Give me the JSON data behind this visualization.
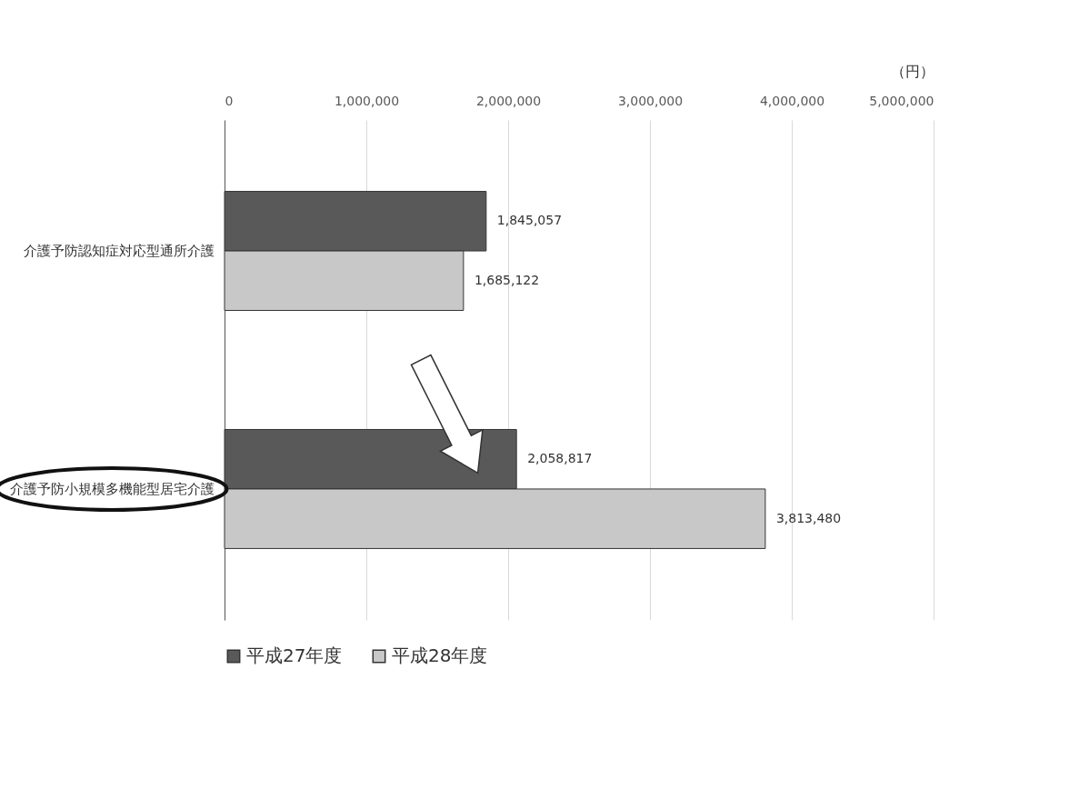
{
  "chart_data": {
    "type": "bar",
    "orientation": "horizontal",
    "xlabel": "（円）",
    "categories": [
      "介護予防認知症対応型通所介護",
      "介護予防小規模多機能型居宅介護"
    ],
    "series": [
      {
        "name": "平成27年度",
        "color": "#595959",
        "values": [
          1845057,
          2058817
        ],
        "value_labels": [
          "1,845,057",
          "2,058,817"
        ]
      },
      {
        "name": "平成28年度",
        "color": "#c8c8c8",
        "values": [
          1685122,
          3813480
        ],
        "value_labels": [
          "1,685,122",
          "3,813,480"
        ]
      }
    ],
    "xlim": [
      0,
      5000000
    ],
    "xticks": [
      {
        "value": 0,
        "label": "0"
      },
      {
        "value": 1000000,
        "label": "1,000,000"
      },
      {
        "value": 2000000,
        "label": "2,000,000"
      },
      {
        "value": 3000000,
        "label": "3,000,000"
      },
      {
        "value": 4000000,
        "label": "4,000,000"
      },
      {
        "value": 5000000,
        "label": "5,000,000"
      }
    ],
    "grid": "x",
    "legend": "bottom"
  }
}
